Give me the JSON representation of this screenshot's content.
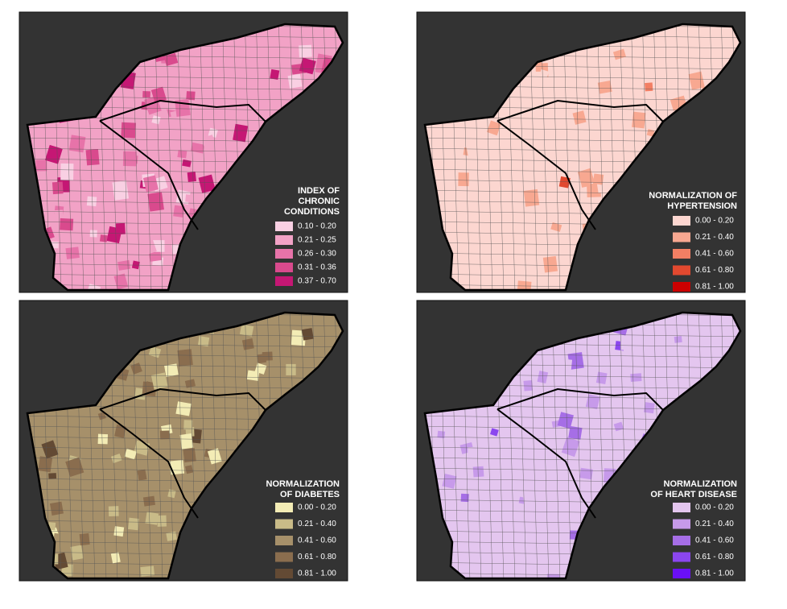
{
  "panels": [
    {
      "title": [
        "INDEX OF",
        "CHRONIC",
        "CONDITIONS"
      ],
      "legend": [
        {
          "label": "0.10 - 0.20",
          "color": "#f9d0e3"
        },
        {
          "label": "0.21 - 0.25",
          "color": "#f2a2c6"
        },
        {
          "label": "0.26 - 0.30",
          "color": "#e773a9"
        },
        {
          "label": "0.31 - 0.36",
          "color": "#d94a8d"
        },
        {
          "label": "0.37 - 0.70",
          "color": "#c51774"
        }
      ]
    },
    {
      "title": [
        "NORMALIZATION OF",
        "HYPERTENSION"
      ],
      "legend": [
        {
          "label": "0.00 - 0.20",
          "color": "#fcd6d0"
        },
        {
          "label": "0.21 - 0.40",
          "color": "#f8a891"
        },
        {
          "label": "0.41 - 0.60",
          "color": "#f27f64"
        },
        {
          "label": "0.61 - 0.80",
          "color": "#e2492f"
        },
        {
          "label": "0.81 - 1.00",
          "color": "#cc0000"
        }
      ]
    },
    {
      "title": [
        "NORMALIZATION",
        "OF DIABETES"
      ],
      "legend": [
        {
          "label": "0.00 - 0.20",
          "color": "#f3ecb5"
        },
        {
          "label": "0.21 - 0.40",
          "color": "#c9bb88"
        },
        {
          "label": "0.41 - 0.60",
          "color": "#a6906a"
        },
        {
          "label": "0.61 - 0.80",
          "color": "#8a6d4e"
        },
        {
          "label": "0.81 - 1.00",
          "color": "#634a34"
        }
      ]
    },
    {
      "title": [
        "NORMALIZATION",
        "OF HEART DISEASE"
      ],
      "legend": [
        {
          "label": "0.00 - 0.20",
          "color": "#e4c6ef"
        },
        {
          "label": "0.21 - 0.40",
          "color": "#c79aea"
        },
        {
          "label": "0.41 - 0.60",
          "color": "#a66ee6"
        },
        {
          "label": "0.61 - 0.80",
          "color": "#8b46ef"
        },
        {
          "label": "0.81 - 1.00",
          "color": "#6a10f5"
        }
      ]
    }
  ]
}
